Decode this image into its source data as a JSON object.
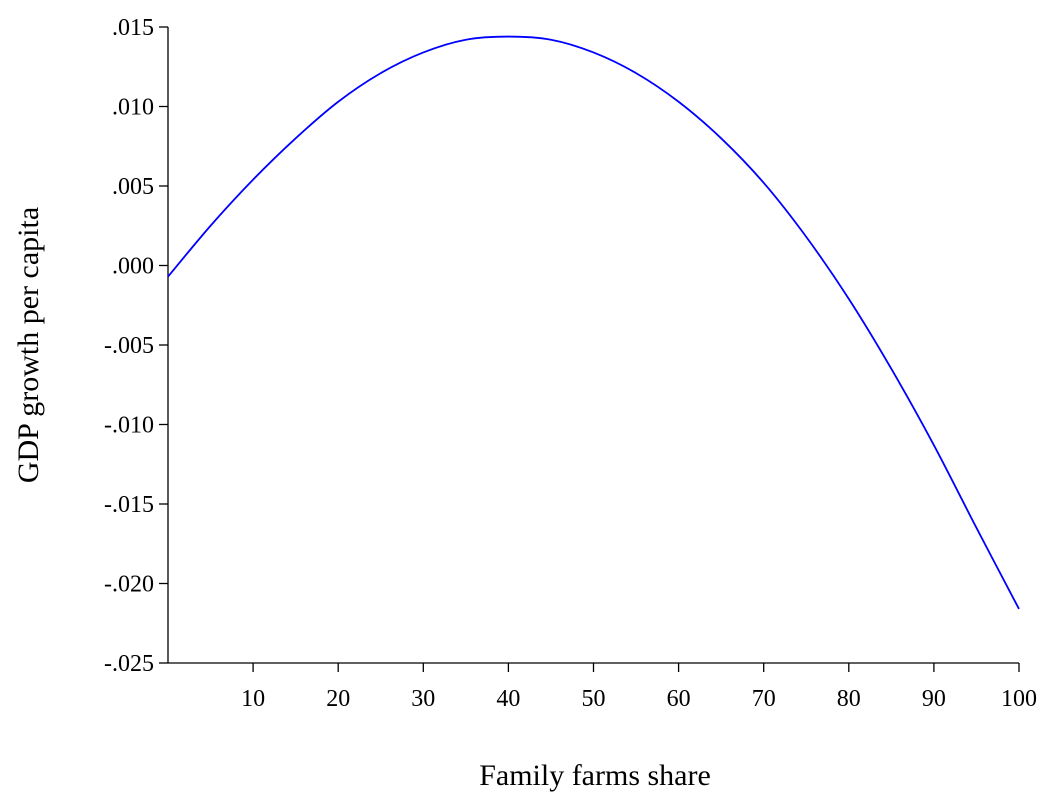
{
  "chart_data": {
    "type": "line",
    "title": "",
    "xlabel": "Family farms share",
    "ylabel": "GDP growth per capita",
    "xlim": [
      0,
      100
    ],
    "ylim": [
      -0.025,
      0.015
    ],
    "x_ticks": [
      10,
      20,
      30,
      40,
      50,
      60,
      70,
      80,
      90,
      100
    ],
    "x_tick_labels": [
      "10",
      "20",
      "30",
      "40",
      "50",
      "60",
      "70",
      "80",
      "90",
      "100"
    ],
    "y_ticks": [
      0.015,
      0.01,
      0.005,
      0.0,
      -0.005,
      -0.01,
      -0.015,
      -0.02,
      -0.025
    ],
    "y_tick_labels": [
      ".015",
      ".010",
      ".005",
      ".000",
      "-.005",
      "-.010",
      "-.015",
      "-.020",
      "-.025"
    ],
    "grid": false,
    "legend": "none",
    "series": [
      {
        "color": "#0000ff",
        "x": [
          0,
          5,
          10,
          15,
          20,
          25,
          30,
          35,
          40,
          45,
          50,
          55,
          60,
          65,
          70,
          75,
          80,
          85,
          90,
          95,
          100
        ],
        "y": [
          -0.0007,
          0.0025,
          0.0054,
          0.008,
          0.0103,
          0.0121,
          0.0134,
          0.0142,
          0.0144,
          0.0142,
          0.0134,
          0.0121,
          0.0103,
          0.008,
          0.0052,
          0.0018,
          -0.0021,
          -0.0065,
          -0.0113,
          -0.0165,
          -0.0216
        ]
      }
    ]
  }
}
